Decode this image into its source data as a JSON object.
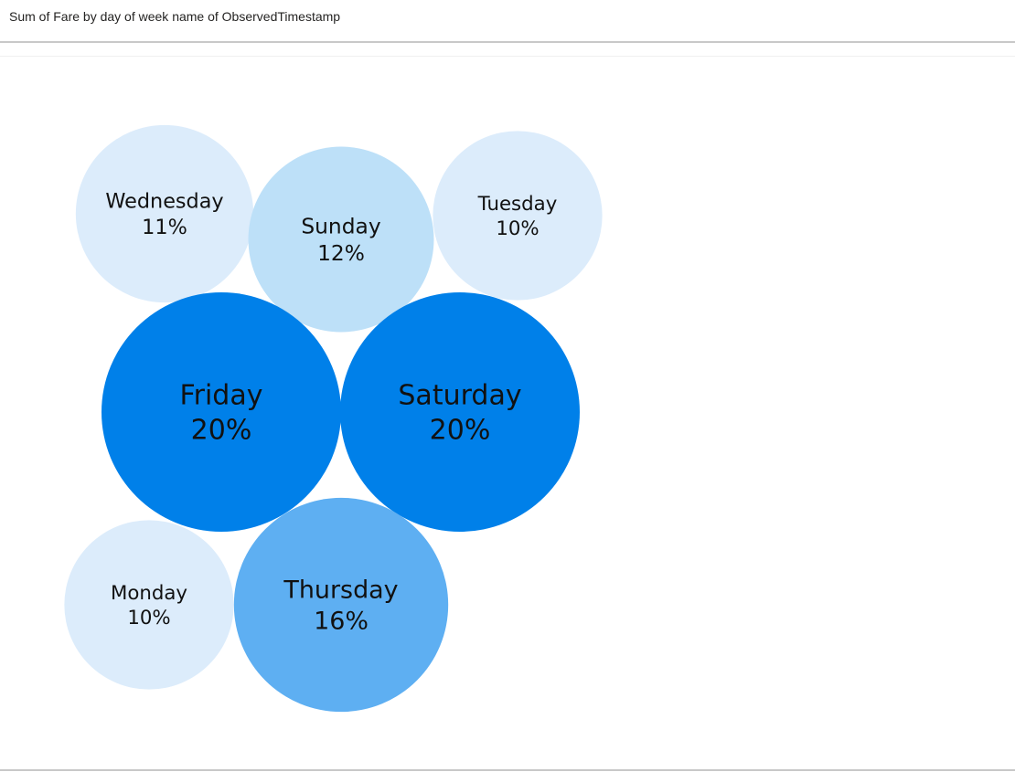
{
  "title": "Sum of Fare by day of week name of ObservedTimestamp",
  "chart_data": {
    "type": "bubble",
    "title": "Sum of Fare by day of week name of ObservedTimestamp",
    "measure": "Sum of Fare",
    "dimension": "day of week name of ObservedTimestamp",
    "legend": "none",
    "bubbles": [
      {
        "label": "Wednesday",
        "value": 11,
        "display": "11%",
        "color": "#dcecfb"
      },
      {
        "label": "Sunday",
        "value": 12,
        "display": "12%",
        "color": "#bde0f8"
      },
      {
        "label": "Tuesday",
        "value": 10,
        "display": "10%",
        "color": "#dcecfb"
      },
      {
        "label": "Friday",
        "value": 20,
        "display": "20%",
        "color": "#0080e9"
      },
      {
        "label": "Saturday",
        "value": 20,
        "display": "20%",
        "color": "#0080e9"
      },
      {
        "label": "Monday",
        "value": 10,
        "display": "10%",
        "color": "#dcecfb"
      },
      {
        "label": "Thursday",
        "value": 16,
        "display": "16%",
        "color": "#5eaff2"
      }
    ]
  }
}
